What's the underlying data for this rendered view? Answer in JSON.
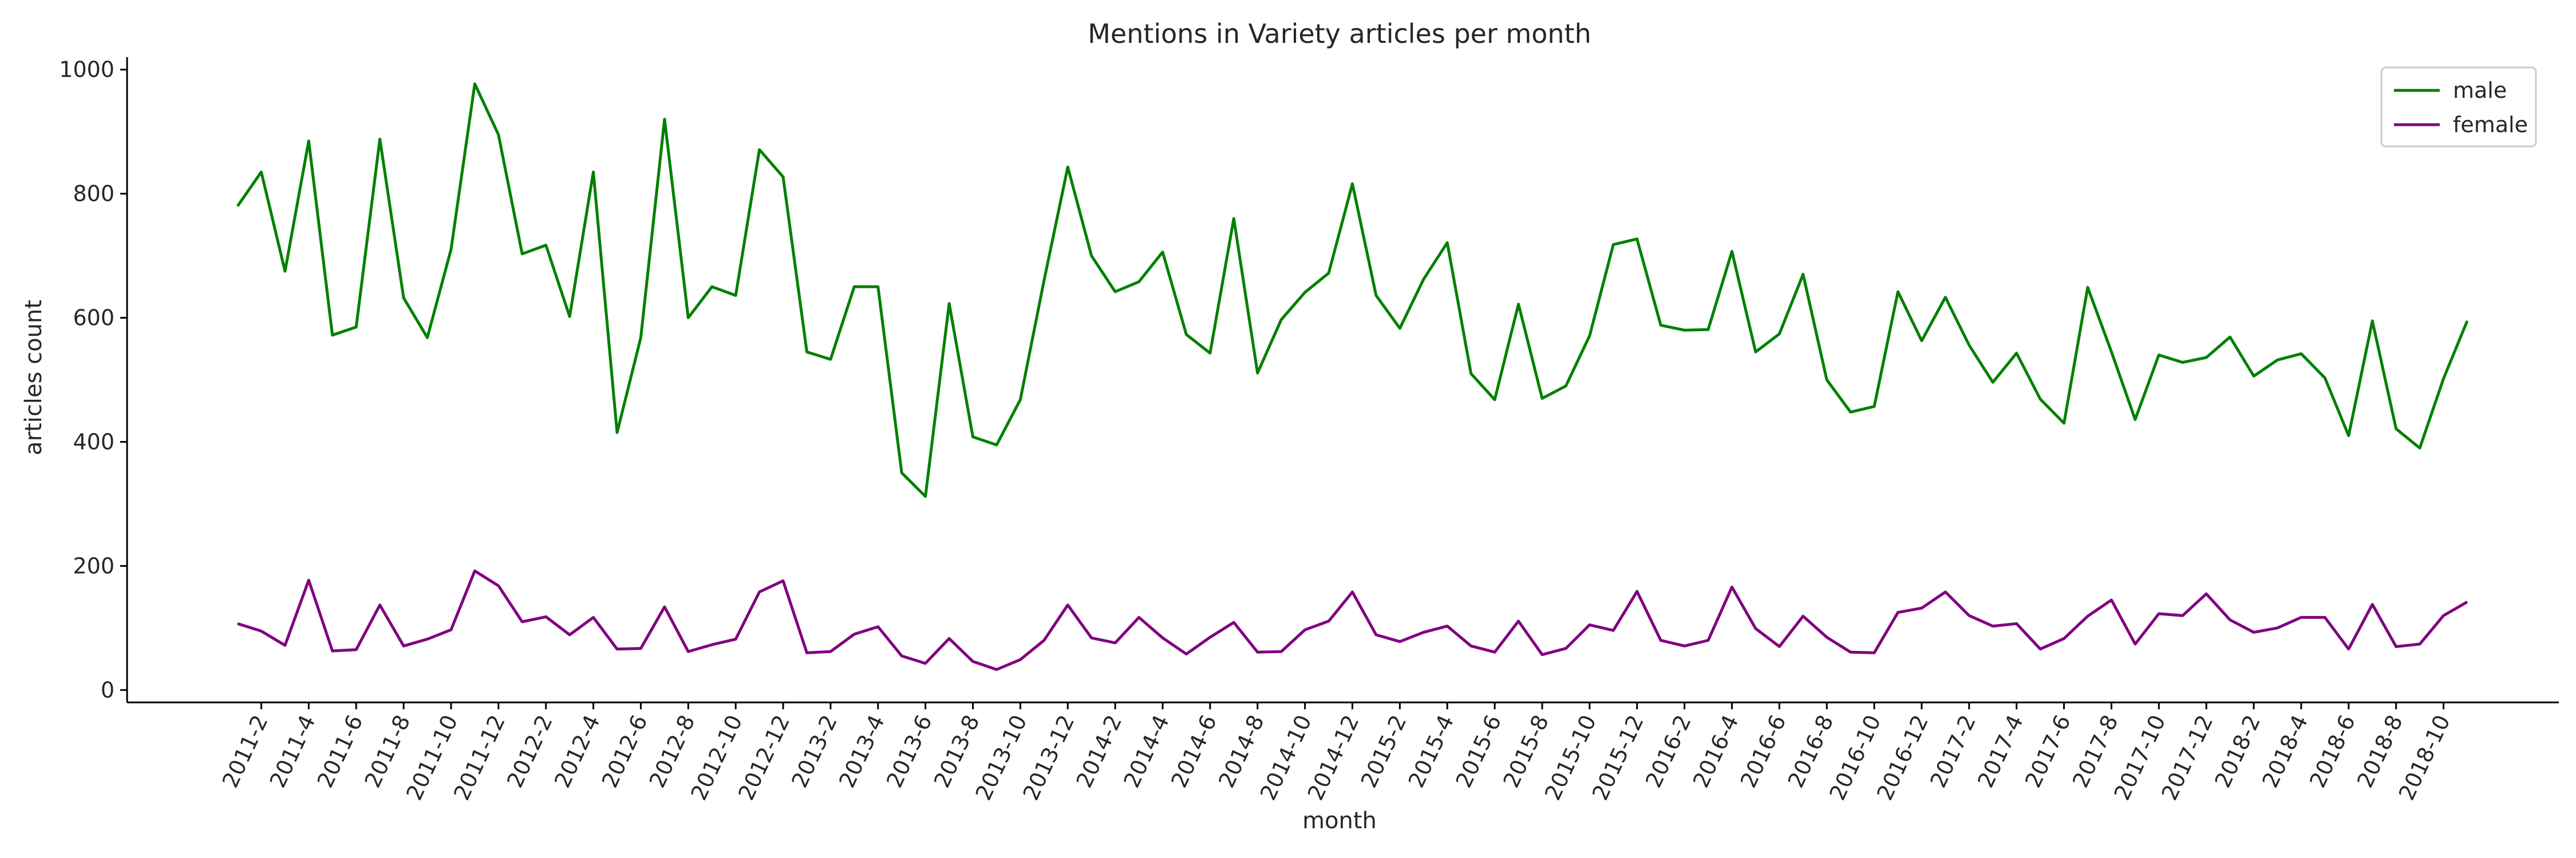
{
  "chart_data": {
    "type": "line",
    "title": "Mentions in Variety articles per month",
    "xlabel": "month",
    "ylabel": "articles count",
    "ylim": [
      -20,
      1020
    ],
    "yticks": [
      0,
      200,
      400,
      600,
      800,
      1000
    ],
    "grid": false,
    "legend_position": "top-right",
    "x": [
      "2011-1",
      "2011-2",
      "2011-3",
      "2011-4",
      "2011-5",
      "2011-6",
      "2011-7",
      "2011-8",
      "2011-9",
      "2011-10",
      "2011-11",
      "2011-12",
      "2012-1",
      "2012-2",
      "2012-3",
      "2012-4",
      "2012-5",
      "2012-6",
      "2012-7",
      "2012-8",
      "2012-9",
      "2012-10",
      "2012-11",
      "2012-12",
      "2013-1",
      "2013-2",
      "2013-3",
      "2013-4",
      "2013-5",
      "2013-6",
      "2013-7",
      "2013-8",
      "2013-9",
      "2013-10",
      "2013-11",
      "2013-12",
      "2014-1",
      "2014-2",
      "2014-3",
      "2014-4",
      "2014-5",
      "2014-6",
      "2014-7",
      "2014-8",
      "2014-9",
      "2014-10",
      "2014-11",
      "2014-12",
      "2015-1",
      "2015-2",
      "2015-3",
      "2015-4",
      "2015-5",
      "2015-6",
      "2015-7",
      "2015-8",
      "2015-9",
      "2015-10",
      "2015-11",
      "2015-12",
      "2016-1",
      "2016-2",
      "2016-3",
      "2016-4",
      "2016-5",
      "2016-6",
      "2016-7",
      "2016-8",
      "2016-9",
      "2016-10",
      "2016-11",
      "2016-12",
      "2017-1",
      "2017-2",
      "2017-3",
      "2017-4",
      "2017-5",
      "2017-6",
      "2017-7",
      "2017-8",
      "2017-9",
      "2017-10",
      "2017-11",
      "2017-12",
      "2018-1",
      "2018-2",
      "2018-3",
      "2018-4",
      "2018-5",
      "2018-6",
      "2018-7",
      "2018-8",
      "2018-9",
      "2018-10",
      "2018-11"
    ],
    "xtick_labels": [
      "2011-2",
      "2011-4",
      "2011-6",
      "2011-8",
      "2011-10",
      "2011-12",
      "2012-2",
      "2012-4",
      "2012-6",
      "2012-8",
      "2012-10",
      "2012-12",
      "2013-2",
      "2013-4",
      "2013-6",
      "2013-8",
      "2013-10",
      "2013-12",
      "2014-2",
      "2014-4",
      "2014-6",
      "2014-8",
      "2014-10",
      "2014-12",
      "2015-2",
      "2015-4",
      "2015-6",
      "2015-8",
      "2015-10",
      "2015-12",
      "2016-2",
      "2016-4",
      "2016-6",
      "2016-8",
      "2016-10",
      "2016-12",
      "2017-2",
      "2017-4",
      "2017-6",
      "2017-8",
      "2017-10",
      "2017-12",
      "2018-2",
      "2018-4",
      "2018-6",
      "2018-8",
      "2018-10"
    ],
    "series": [
      {
        "name": "male",
        "color": "#008000",
        "values": [
          780,
          835,
          675,
          885,
          572,
          585,
          888,
          632,
          568,
          710,
          977,
          895,
          703,
          717,
          602,
          835,
          415,
          568,
          920,
          600,
          650,
          636,
          871,
          827,
          545,
          533,
          650,
          650,
          350,
          312,
          623,
          408,
          395,
          468,
          660,
          843,
          700,
          642,
          658,
          706,
          573,
          543,
          760,
          511,
          597,
          641,
          672,
          816,
          636,
          583,
          662,
          721,
          510,
          468,
          622,
          470,
          490,
          571,
          718,
          727,
          588,
          580,
          581,
          707,
          545,
          574,
          670,
          500,
          448,
          457,
          642,
          563,
          633,
          556,
          496,
          543,
          469,
          430,
          649,
          545,
          436,
          540,
          528,
          536,
          569,
          506,
          532,
          542,
          503,
          410,
          595,
          421,
          390,
          502,
          595
        ]
      },
      {
        "name": "female",
        "color": "#800080",
        "values": [
          107,
          95,
          72,
          177,
          63,
          65,
          137,
          71,
          82,
          97,
          192,
          168,
          110,
          118,
          89,
          117,
          66,
          67,
          134,
          62,
          73,
          82,
          158,
          176,
          60,
          62,
          90,
          102,
          55,
          43,
          83,
          46,
          33,
          49,
          80,
          137,
          84,
          76,
          117,
          84,
          58,
          85,
          109,
          61,
          62,
          97,
          111,
          158,
          89,
          78,
          93,
          103,
          71,
          61,
          111,
          57,
          67,
          105,
          96,
          159,
          80,
          71,
          80,
          166,
          99,
          70,
          119,
          85,
          61,
          60,
          125,
          132,
          158,
          120,
          103,
          107,
          66,
          83,
          119,
          145,
          74,
          123,
          120,
          155,
          113,
          93,
          100,
          117,
          117,
          66,
          138,
          70,
          74,
          120,
          142
        ]
      }
    ]
  }
}
